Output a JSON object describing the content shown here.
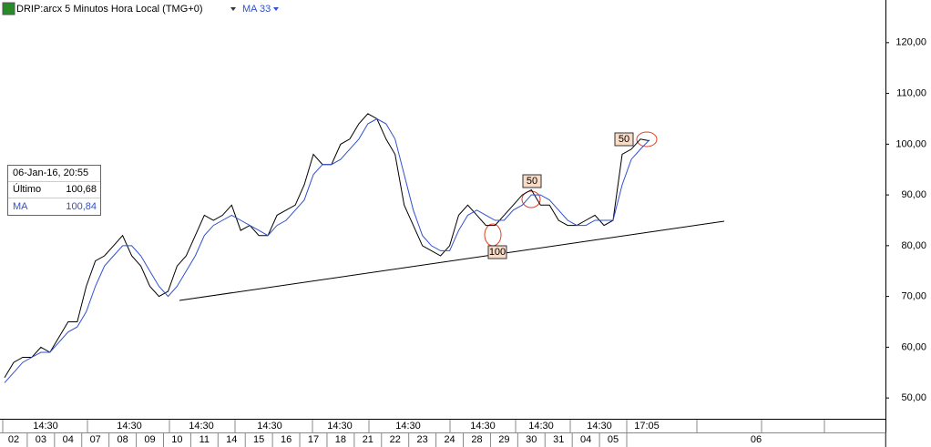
{
  "chart_data": {
    "type": "line",
    "title": "DRIP:arcx 5 Minutos Hora Local (TMG+0)",
    "indicator": "MA 33",
    "categories": [
      "02",
      "03",
      "04",
      "07",
      "08",
      "09",
      "10",
      "11",
      "14",
      "15",
      "16",
      "17",
      "18",
      "21",
      "22",
      "23",
      "24",
      "28",
      "29",
      "30",
      "31",
      "04",
      "05",
      "06"
    ],
    "session_labels": [
      "14:30",
      "14:30",
      "14:30",
      "14:30",
      "14:30",
      "14:30",
      "14:30",
      "14:30",
      "14:30",
      "17:05"
    ],
    "series": [
      {
        "name": "DRIP:arcx",
        "color": "#000000",
        "values": [
          [
            54,
            57,
            58
          ],
          [
            58,
            60,
            59
          ],
          [
            62,
            65,
            65
          ],
          [
            72,
            77,
            78
          ],
          [
            80,
            82,
            78
          ],
          [
            76,
            72,
            70
          ],
          [
            71,
            76,
            78
          ],
          [
            82,
            86,
            85
          ],
          [
            86,
            88,
            83
          ],
          [
            84,
            82,
            82
          ],
          [
            86,
            87,
            88
          ],
          [
            92,
            98,
            96
          ],
          [
            96,
            100,
            101
          ],
          [
            104,
            106,
            105
          ],
          [
            101,
            98,
            88
          ],
          [
            84,
            80,
            79
          ],
          [
            78,
            80,
            86
          ],
          [
            88,
            86,
            84
          ],
          [
            84,
            86,
            88
          ],
          [
            90,
            91,
            88
          ],
          [
            88,
            85,
            84
          ],
          [
            84,
            85,
            86
          ],
          [
            84,
            85,
            98
          ],
          [
            99,
            101,
            100.68
          ]
        ]
      },
      {
        "name": "MA",
        "color": "#3050d0",
        "values": [
          [
            53,
            55,
            57
          ],
          [
            58,
            59,
            59
          ],
          [
            61,
            63,
            64
          ],
          [
            67,
            72,
            76
          ],
          [
            78,
            80,
            80
          ],
          [
            78,
            75,
            72
          ],
          [
            70,
            72,
            75
          ],
          [
            78,
            82,
            84
          ],
          [
            85,
            86,
            85
          ],
          [
            84,
            83,
            82
          ],
          [
            84,
            85,
            87
          ],
          [
            89,
            94,
            96
          ],
          [
            96,
            97,
            99
          ],
          [
            101,
            104,
            105
          ],
          [
            104,
            101,
            94
          ],
          [
            87,
            82,
            80
          ],
          [
            79,
            79,
            83
          ],
          [
            86,
            87,
            86
          ],
          [
            85,
            85,
            87
          ],
          [
            88,
            90,
            90
          ],
          [
            89,
            87,
            85
          ],
          [
            84,
            84,
            85
          ],
          [
            85,
            85,
            92
          ],
          [
            97,
            99,
            100.84
          ]
        ]
      }
    ],
    "annotations": [
      "50",
      "100",
      "50"
    ],
    "ylim": [
      45.9,
      128.4
    ],
    "yticks": [
      {
        "value": 50,
        "label": "50,00"
      },
      {
        "value": 60,
        "label": "60,00"
      },
      {
        "value": 70,
        "label": "70,00"
      },
      {
        "value": 80,
        "label": "80,00"
      },
      {
        "value": 90,
        "label": "90,00"
      },
      {
        "value": 100,
        "label": "100,00"
      },
      {
        "value": 110,
        "label": "110,00"
      },
      {
        "value": 120,
        "label": "120,00"
      }
    ]
  },
  "info": {
    "datetime": "06-Jan-16, 20:55",
    "rows": [
      {
        "label": "Último",
        "value": "100,68"
      },
      {
        "label": "MA",
        "value": "100,84"
      }
    ]
  }
}
